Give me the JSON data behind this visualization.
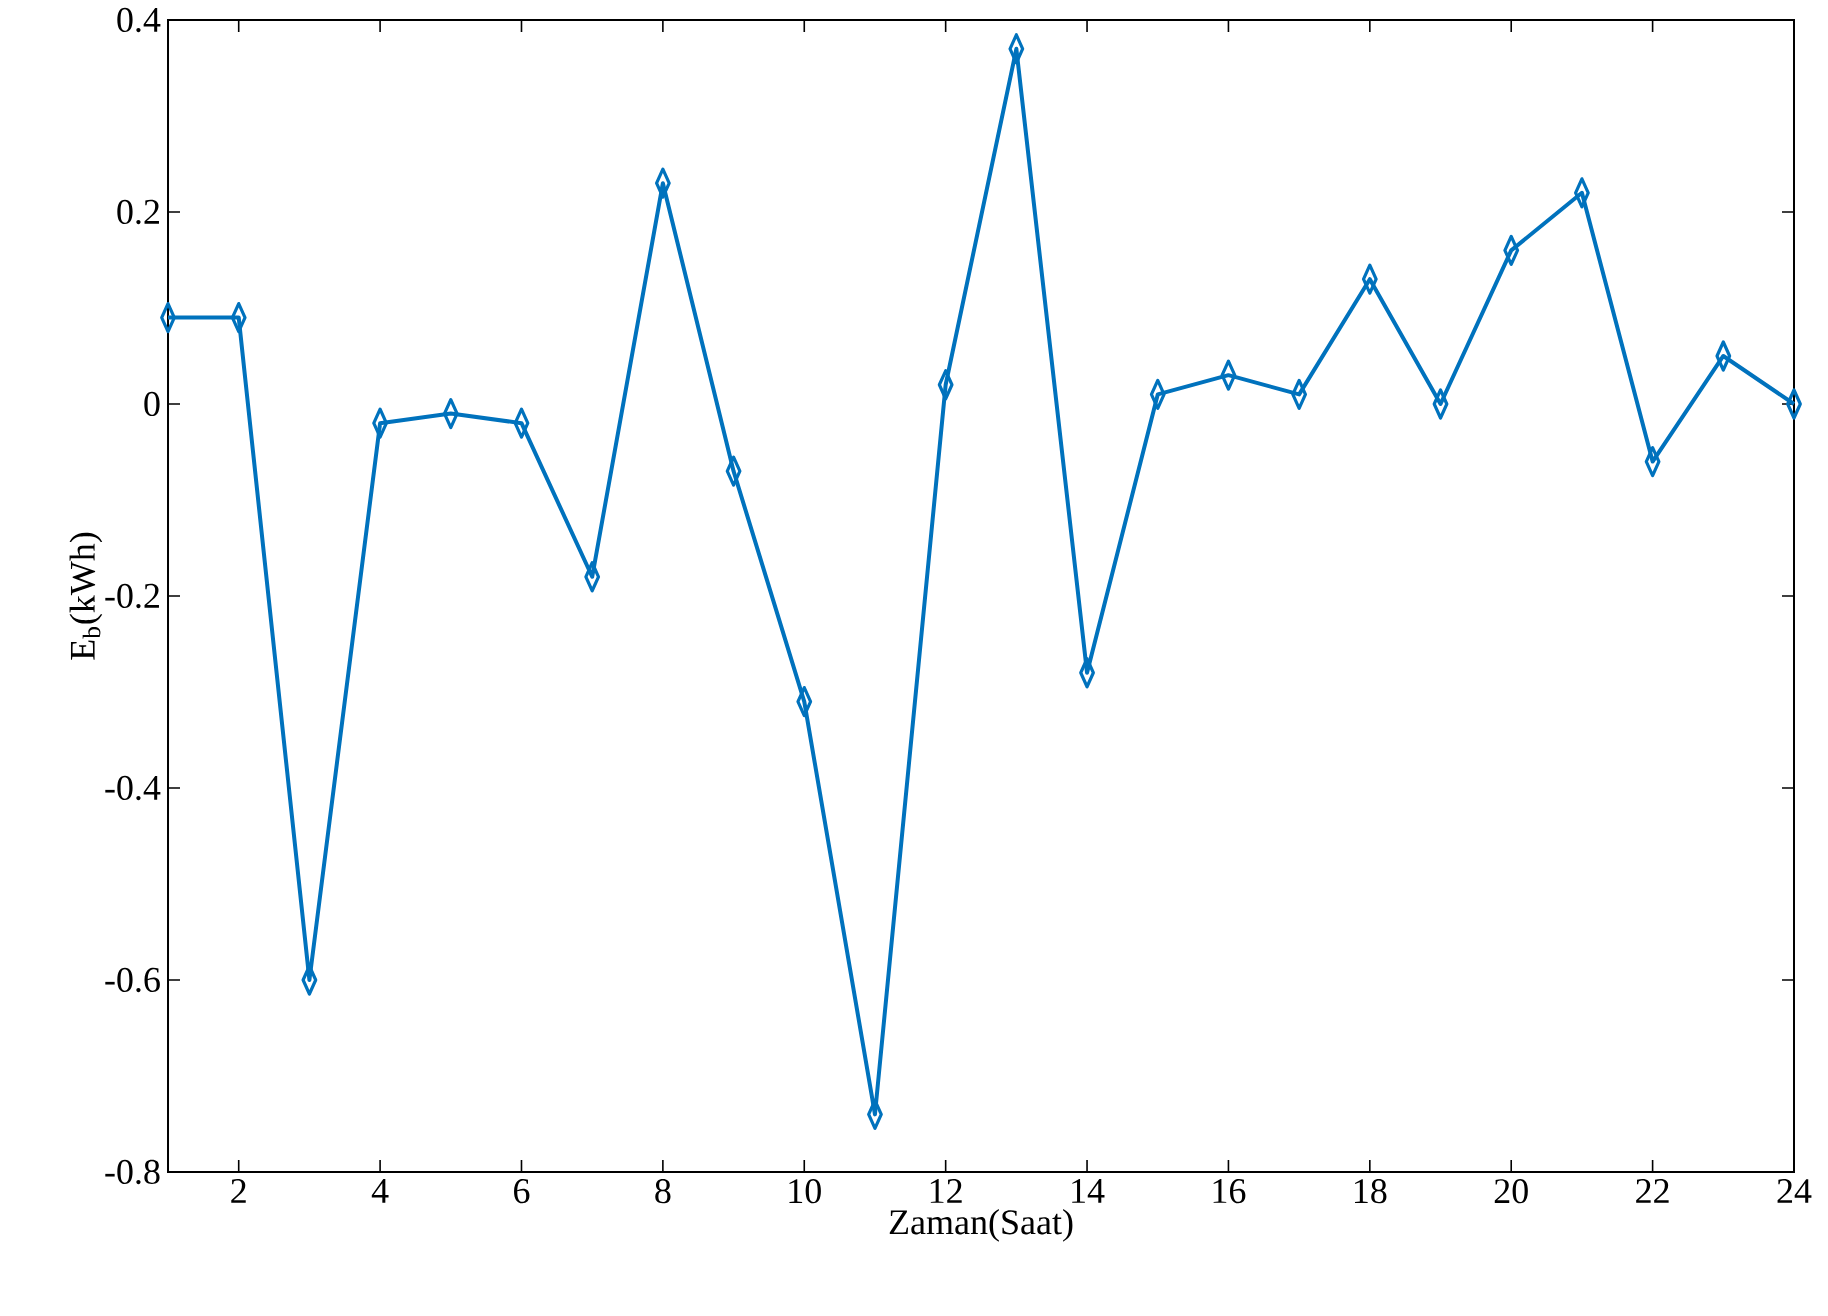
{
  "chart_data": {
    "type": "line",
    "xlabel": "Zaman(Saat)",
    "ylabel": "E$_{b}$(kWh)",
    "x": [
      1,
      2,
      3,
      4,
      5,
      6,
      7,
      8,
      9,
      10,
      11,
      12,
      13,
      14,
      15,
      16,
      17,
      18,
      19,
      20,
      21,
      22,
      23,
      24
    ],
    "series": [
      {
        "color": "#0072bd",
        "values": [
          0.09,
          0.09,
          -0.6,
          -0.02,
          -0.01,
          -0.02,
          -0.18,
          0.23,
          -0.07,
          -0.31,
          -0.74,
          0.02,
          0.37,
          -0.28,
          0.01,
          0.03,
          0.01,
          0.13,
          0.0,
          0.16,
          0.22,
          -0.06,
          0.05,
          0.0
        ]
      }
    ],
    "xlim": [
      1,
      24
    ],
    "ylim": [
      -0.8,
      0.4
    ],
    "xticks": [
      2,
      4,
      6,
      8,
      10,
      12,
      14,
      16,
      18,
      20,
      22,
      24
    ],
    "yticks": [
      0.4,
      0.2,
      0,
      {
        "value": -0.2,
        "label": "-0.2"
      },
      {
        "value": -0.4,
        "label": "-0.4"
      },
      {
        "value": -0.6,
        "label": "-0.6"
      },
      {
        "value": -0.8,
        "label": "-0.8"
      }
    ],
    "marker": "diamond",
    "line_style": "solid",
    "grid": false
  }
}
